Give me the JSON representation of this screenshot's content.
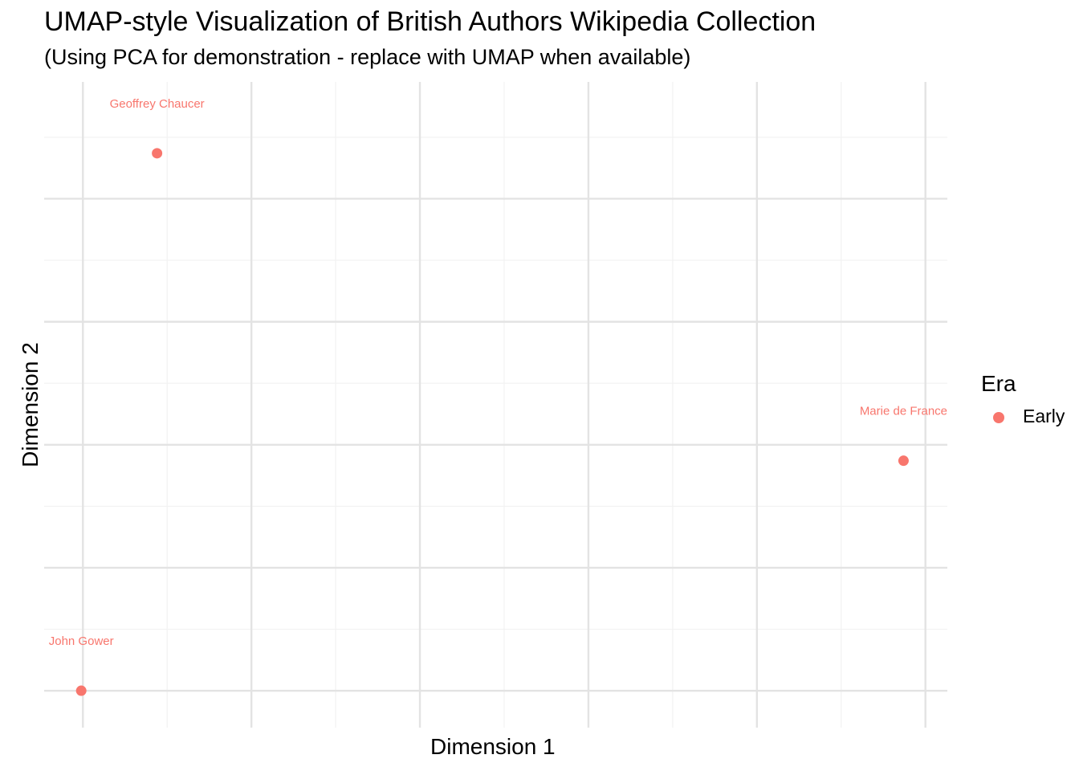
{
  "chart_data": {
    "type": "scatter",
    "title": "UMAP-style Visualization of British Authors Wikipedia Collection",
    "subtitle": "(Using PCA for demonstration - replace with UMAP when available)",
    "xlabel": "Dimension 1",
    "ylabel": "Dimension 2",
    "xlim": [
      -0.23,
      5.13
    ],
    "ylim": [
      -0.3,
      4.95
    ],
    "grid": true,
    "legend": {
      "title": "Era",
      "placement": "right",
      "entries": [
        {
          "label": "Early",
          "color": "#F8766D"
        }
      ]
    },
    "series": [
      {
        "name": "Early",
        "color": "#F8766D",
        "points": [
          {
            "label": "Geoffrey Chaucer",
            "x": 0.44,
            "y": 4.37
          },
          {
            "label": "Marie de France",
            "x": 4.87,
            "y": 1.87
          },
          {
            "label": "John Gower",
            "x": -0.01,
            "y": 0.0
          }
        ]
      }
    ]
  }
}
